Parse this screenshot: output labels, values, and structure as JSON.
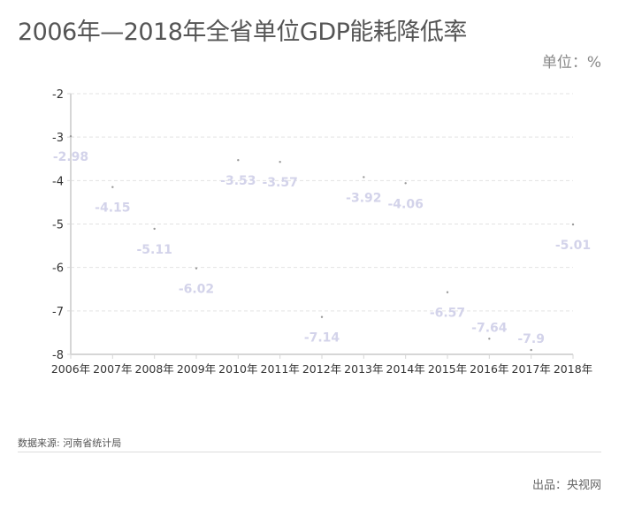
{
  "title": "2006年—2018年全省单位GDP能耗降低率",
  "unit_label": "单位：%",
  "source": "数据来源: 河南省统计局",
  "credit": "出品：央视网",
  "colors": {
    "label": "#d3d3ea",
    "point": "#999999",
    "grid": "#e3e3e3",
    "axis": "#d6d6d6"
  },
  "chart_data": {
    "type": "scatter",
    "categories": [
      "2006年",
      "2007年",
      "2008年",
      "2009年",
      "2010年",
      "2011年",
      "2012年",
      "2013年",
      "2014年",
      "2015年",
      "2016年",
      "2017年",
      "2018年"
    ],
    "values": [
      -2.98,
      -4.15,
      -5.11,
      -6.02,
      -3.53,
      -3.57,
      -7.14,
      -3.92,
      -4.06,
      -6.57,
      -7.64,
      -7.9,
      -5.01
    ],
    "ylim": [
      -8,
      -2
    ],
    "yticks": [
      -2,
      -3,
      -4,
      -5,
      -6,
      -7,
      -8
    ],
    "grid": true,
    "data_labels": [
      "-2.98",
      "-4.15",
      "-5.11",
      "-6.02",
      "-3.53",
      "-3.57",
      "-7.14",
      "-3.92",
      "-4.06",
      "-6.57",
      "-7.64",
      "-7.9",
      "-5.01"
    ]
  }
}
